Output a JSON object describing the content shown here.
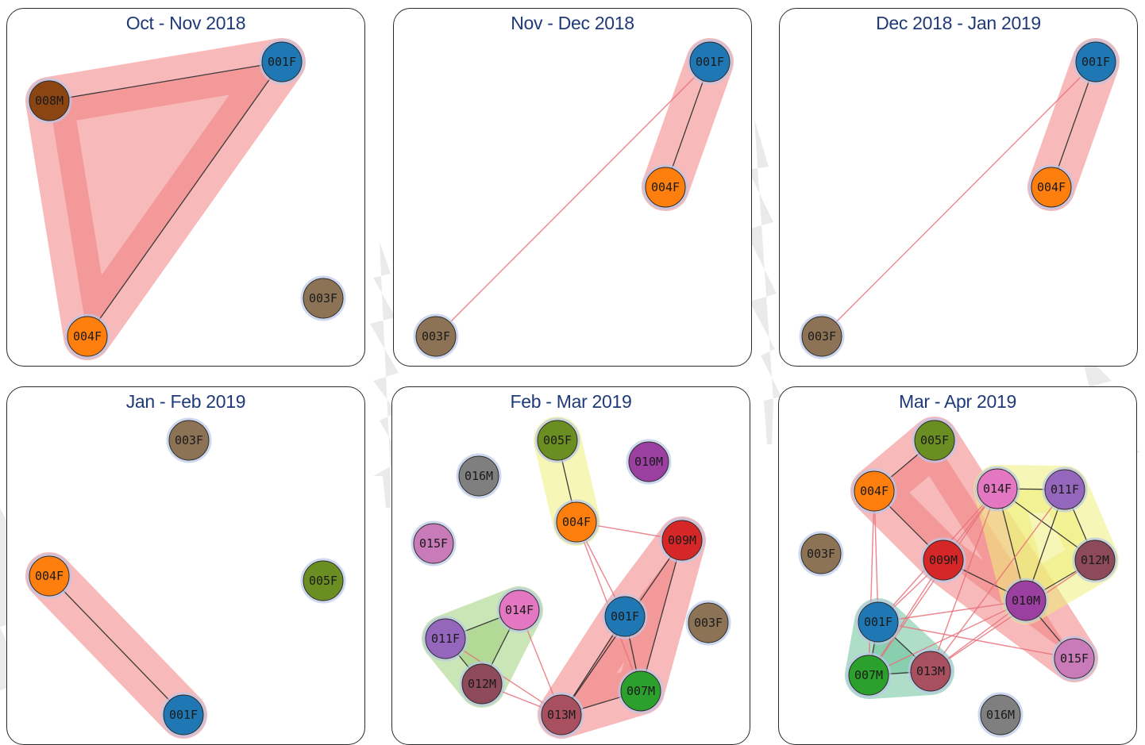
{
  "colors": {
    "title": "#1f3a78",
    "hull_red": "#f08080",
    "hull_yellow": "#eeee7a",
    "hull_green": "#9fd07a",
    "hull_teal": "#6cc39a",
    "edge_within": "#333333",
    "edge_between": "#e8707a"
  },
  "node_colors": {
    "001F": "#1f77b4",
    "003F": "#8c7355",
    "004F": "#ff7f0e",
    "005F": "#6b8e23",
    "007M": "#2ca02c",
    "008M": "#8b4513",
    "009M": "#d62728",
    "010M": "#9b3fa0",
    "011F": "#9467bd",
    "012M": "#8c4a5a",
    "013M": "#a85060",
    "014F": "#e377c2",
    "015F": "#c97ab8",
    "016M": "#7f7f7f"
  },
  "panels": [
    {
      "title": "Oct - Nov 2018",
      "nodes": [
        "001F",
        "008M",
        "004F",
        "003F"
      ],
      "hulls": [
        {
          "color": "hull_red",
          "members": [
            "008M",
            "001F",
            "004F"
          ]
        }
      ],
      "edges": [
        [
          "008M",
          "001F",
          "within"
        ],
        [
          "001F",
          "004F",
          "within"
        ]
      ]
    },
    {
      "title": "Nov - Dec 2018",
      "nodes": [
        "001F",
        "004F",
        "003F"
      ],
      "hulls": [
        {
          "color": "hull_red",
          "members": [
            "001F",
            "004F"
          ]
        }
      ],
      "edges": [
        [
          "001F",
          "004F",
          "within"
        ],
        [
          "001F",
          "003F",
          "between"
        ]
      ]
    },
    {
      "title": "Dec 2018 - Jan 2019",
      "nodes": [
        "001F",
        "004F",
        "003F"
      ],
      "hulls": [
        {
          "color": "hull_red",
          "members": [
            "001F",
            "004F"
          ]
        }
      ],
      "edges": [
        [
          "001F",
          "004F",
          "within"
        ],
        [
          "001F",
          "003F",
          "between"
        ]
      ]
    },
    {
      "title": "Jan - Feb 2019",
      "nodes": [
        "003F",
        "004F",
        "005F",
        "001F"
      ],
      "hulls": [
        {
          "color": "hull_red",
          "members": [
            "004F",
            "001F"
          ]
        }
      ],
      "edges": [
        [
          "004F",
          "001F",
          "within"
        ]
      ]
    },
    {
      "title": "Feb - Mar 2019",
      "nodes": [
        "005F",
        "010M",
        "016M",
        "004F",
        "009M",
        "015F",
        "014F",
        "001F",
        "003F",
        "011F",
        "012M",
        "007M",
        "013M"
      ],
      "hulls": [
        {
          "color": "hull_yellow",
          "members": [
            "005F",
            "004F"
          ]
        },
        {
          "color": "hull_green",
          "members": [
            "014F",
            "011F",
            "012M"
          ]
        },
        {
          "color": "hull_red",
          "members": [
            "009M",
            "001F",
            "007M",
            "013M"
          ]
        }
      ],
      "edges": [
        [
          "005F",
          "004F",
          "within"
        ],
        [
          "014F",
          "011F",
          "within"
        ],
        [
          "011F",
          "012M",
          "within"
        ],
        [
          "014F",
          "012M",
          "within"
        ],
        [
          "009M",
          "013M",
          "within"
        ],
        [
          "009M",
          "007M",
          "within"
        ],
        [
          "001F",
          "013M",
          "within"
        ],
        [
          "001F",
          "007M",
          "within"
        ],
        [
          "007M",
          "013M",
          "within"
        ],
        [
          "004F",
          "009M",
          "between"
        ],
        [
          "004F",
          "001F",
          "between"
        ],
        [
          "004F",
          "007M",
          "between"
        ],
        [
          "012M",
          "013M",
          "between"
        ],
        [
          "014F",
          "013M",
          "between"
        ],
        [
          "011F",
          "013M",
          "between"
        ]
      ]
    },
    {
      "title": "Mar - Apr 2019",
      "nodes": [
        "005F",
        "004F",
        "014F",
        "011F",
        "003F",
        "009M",
        "012M",
        "010M",
        "001F",
        "015F",
        "007M",
        "013M",
        "016M"
      ],
      "hulls": [
        {
          "color": "hull_red",
          "members": [
            "005F",
            "004F",
            "009M",
            "010M",
            "015F"
          ]
        },
        {
          "color": "hull_yellow",
          "members": [
            "014F",
            "011F",
            "012M",
            "010M"
          ]
        },
        {
          "color": "hull_teal",
          "members": [
            "001F",
            "007M",
            "013M"
          ]
        }
      ],
      "edges": [
        [
          "005F",
          "004F",
          "within"
        ],
        [
          "004F",
          "009M",
          "within"
        ],
        [
          "009M",
          "010M",
          "within"
        ],
        [
          "010M",
          "015F",
          "within"
        ],
        [
          "014F",
          "011F",
          "within"
        ],
        [
          "014F",
          "012M",
          "within"
        ],
        [
          "014F",
          "010M",
          "within"
        ],
        [
          "011F",
          "010M",
          "within"
        ],
        [
          "011F",
          "012M",
          "within"
        ],
        [
          "012M",
          "010M",
          "within"
        ],
        [
          "001F",
          "007M",
          "within"
        ],
        [
          "001F",
          "013M",
          "within"
        ],
        [
          "007M",
          "013M",
          "within"
        ],
        [
          "014F",
          "001F",
          "between"
        ],
        [
          "014F",
          "007M",
          "between"
        ],
        [
          "014F",
          "013M",
          "between"
        ],
        [
          "011F",
          "013M",
          "between"
        ],
        [
          "009M",
          "001F",
          "between"
        ],
        [
          "009M",
          "007M",
          "between"
        ],
        [
          "004F",
          "001F",
          "between"
        ],
        [
          "004F",
          "007M",
          "between"
        ],
        [
          "010M",
          "001F",
          "between"
        ],
        [
          "010M",
          "013M",
          "between"
        ],
        [
          "012M",
          "013M",
          "between"
        ],
        [
          "014F",
          "009M",
          "between"
        ],
        [
          "001F",
          "015F",
          "between"
        ],
        [
          "010M",
          "007M",
          "between"
        ]
      ]
    }
  ]
}
